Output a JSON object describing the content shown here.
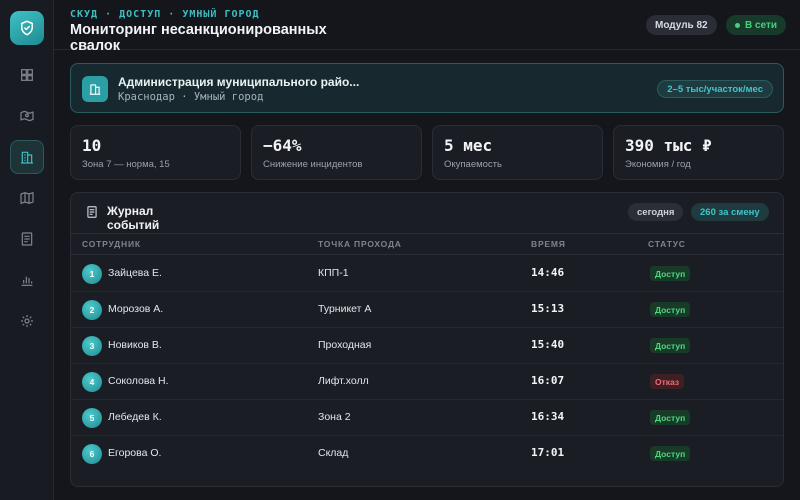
{
  "header": {
    "breadcrumb": "СКУД · ДОСТУП · УМНЫЙ ГОРОД",
    "title": "Мониторинг несанкционированных свалок",
    "module_label": "Модуль 82",
    "status_label": "В сети"
  },
  "sidebar": {
    "items": [
      {
        "name": "dashboard",
        "icon": "grid-icon"
      },
      {
        "name": "map-route",
        "icon": "map-pin-icon"
      },
      {
        "name": "buildings",
        "icon": "building-icon",
        "active": true
      },
      {
        "name": "map",
        "icon": "map-icon"
      },
      {
        "name": "documents",
        "icon": "document-icon"
      },
      {
        "name": "analytics",
        "icon": "bar-chart-icon"
      },
      {
        "name": "settings",
        "icon": "gear-icon"
      }
    ]
  },
  "org": {
    "name": "Администрация муниципального райо...",
    "subtitle": "Краснодар · Умный город",
    "rate": "2–5 тыс/участок/мес"
  },
  "stats": [
    {
      "value": "10",
      "label": "Зона 7 — норма, 15"
    },
    {
      "value": "−64%",
      "label": "Снижение инцидентов"
    },
    {
      "value": "5 мес",
      "label": "Окупаемость"
    },
    {
      "value": "390 тыс ₽",
      "label": "Экономия / год"
    }
  ],
  "journal": {
    "title": "Журнал событий",
    "filter_label": "сегодня",
    "count_label": "260 за смену",
    "columns": [
      "СОТРУДНИК",
      "ТОЧКА ПРОХОДА",
      "ВРЕМЯ",
      "СТАТУС"
    ],
    "rows": [
      {
        "num": "1",
        "name": "Зайцева Е.",
        "point": "КПП-1",
        "time": "14:46",
        "status": "Доступ",
        "kind": "ok"
      },
      {
        "num": "2",
        "name": "Морозов А.",
        "point": "Турникет А",
        "time": "15:13",
        "status": "Доступ",
        "kind": "ok"
      },
      {
        "num": "3",
        "name": "Новиков В.",
        "point": "Проходная",
        "time": "15:40",
        "status": "Доступ",
        "kind": "ok"
      },
      {
        "num": "4",
        "name": "Соколова Н.",
        "point": "Лифт.холл",
        "time": "16:07",
        "status": "Отказ",
        "kind": "deny"
      },
      {
        "num": "5",
        "name": "Лебедев К.",
        "point": "Зона 2",
        "time": "16:34",
        "status": "Доступ",
        "kind": "ok"
      },
      {
        "num": "6",
        "name": "Егорова О.",
        "point": "Склад",
        "time": "17:01",
        "status": "Доступ",
        "kind": "ok"
      }
    ]
  },
  "colors": {
    "accent": "#3dbfc1",
    "ok": "#4cd884",
    "deny": "#f06a74",
    "bg": "#14161c"
  }
}
